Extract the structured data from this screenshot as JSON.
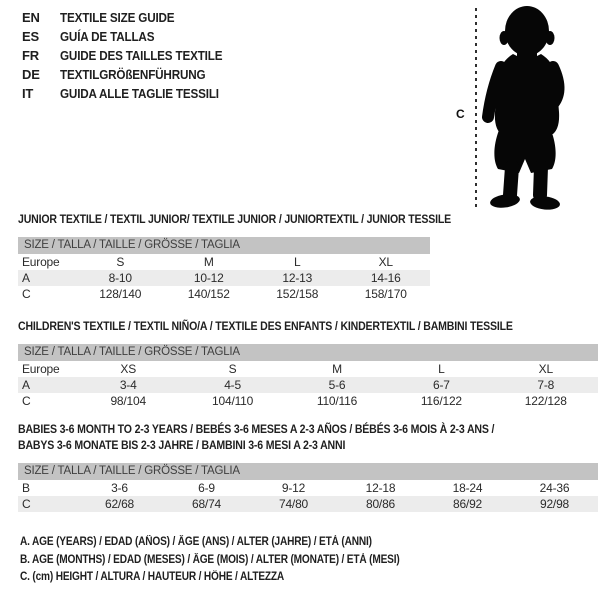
{
  "header": {
    "languages": [
      {
        "code": "EN",
        "title": "TEXTILE SIZE GUIDE"
      },
      {
        "code": "ES",
        "title": "GUÍA DE TALLAS"
      },
      {
        "code": "FR",
        "title": "GUIDE DES TAILLES TEXTILE"
      },
      {
        "code": "DE",
        "title": "TEXTILGRÖßENFÜHRUNG"
      },
      {
        "code": "IT",
        "title": "GUIDA ALLE TAGLIE TESSILI"
      }
    ]
  },
  "figure": {
    "height_label": "C"
  },
  "sections": [
    {
      "id": "junior",
      "title_lines": [
        "JUNIOR TEXTILE / TEXTIL JUNIOR/ TEXTILE JUNIOR / JUNIORTEXTIL / JUNIOR TESSILE"
      ],
      "size_header": "SIZE / TALLA / TAILLE / GRÖSSE / TAGLIA",
      "rows": [
        {
          "label": "Europe",
          "values": [
            "S",
            "M",
            "L",
            "XL"
          ],
          "shaded": false
        },
        {
          "label": "A",
          "values": [
            "8-10",
            "10-12",
            "12-13",
            "14-16"
          ],
          "shaded": true
        },
        {
          "label": "C",
          "values": [
            "128/140",
            "140/152",
            "152/158",
            "158/170"
          ],
          "shaded": false
        }
      ]
    },
    {
      "id": "children",
      "title_lines": [
        "CHILDREN'S TEXTILE / TEXTIL NIÑO/A / TEXTILE DES ENFANTS / KINDERTEXTIL / BAMBINI TESSILE"
      ],
      "size_header": "SIZE / TALLA / TAILLE / GRÖSSE / TAGLIA",
      "rows": [
        {
          "label": "Europe",
          "values": [
            "XS",
            "S",
            "M",
            "L",
            "XL"
          ],
          "shaded": false
        },
        {
          "label": "A",
          "values": [
            "3-4",
            "4-5",
            "5-6",
            "6-7",
            "7-8"
          ],
          "shaded": true
        },
        {
          "label": "C",
          "values": [
            "98/104",
            "104/110",
            "110/116",
            "116/122",
            "122/128"
          ],
          "shaded": false
        }
      ]
    },
    {
      "id": "babies",
      "title_lines": [
        "BABIES 3-6 MONTH TO 2-3 YEARS / BEBÉS 3-6 MESES A 2-3 AÑOS / BÉBÉS 3-6 MOIS À 2-3 ANS /",
        "BABYS 3-6 MONATE BIS 2-3 JAHRE / BAMBINI 3-6 MESI A 2-3 ANNI"
      ],
      "size_header": "SIZE / TALLA / TAILLE / GRÖSSE / TAGLIA",
      "rows": [
        {
          "label": "B",
          "values": [
            "3-6",
            "6-9",
            "9-12",
            "12-18",
            "18-24",
            "24-36"
          ],
          "shaded": false
        },
        {
          "label": "C",
          "values": [
            "62/68",
            "68/74",
            "74/80",
            "80/86",
            "86/92",
            "92/98"
          ],
          "shaded": true
        }
      ]
    }
  ],
  "footnotes": [
    "A. AGE (YEARS) / EDAD (AÑOS) / ÂGE (ANS) / ALTER (JAHRE) / ETÀ (ANNI)",
    "B. AGE (MONTHS) / EDAD (MESES) / ÂGE (MOIS) / ALTER (MONATE) / ETÀ (MESI)",
    "C. (cm) HEIGHT / ALTURA / HAUTEUR / HÖHE / ALTEZZA"
  ],
  "colors": {
    "header_bar": "#c3c3c3",
    "row_shade": "#ececec",
    "text": "#1f1f1f",
    "muted_text": "#3f3f3f",
    "silhouette": "#060606"
  }
}
